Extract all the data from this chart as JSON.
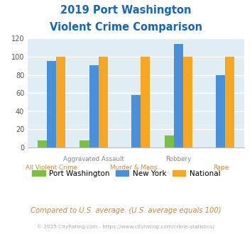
{
  "title_line1": "2019 Port Washington",
  "title_line2": "Violent Crime Comparison",
  "series": {
    "Port Washington": [
      8,
      8,
      0,
      13,
      0
    ],
    "New York": [
      95,
      91,
      58,
      114,
      80
    ],
    "National": [
      100,
      100,
      100,
      100,
      100
    ]
  },
  "colors": {
    "Port Washington": "#7BC043",
    "New York": "#4A90D9",
    "National": "#F5A623"
  },
  "ylim": [
    0,
    120
  ],
  "yticks": [
    0,
    20,
    40,
    60,
    80,
    100,
    120
  ],
  "plot_bg": "#E0EEF4",
  "title_color": "#1565C0",
  "xlabel_top": [
    "",
    "Aggravated Assault",
    "",
    "Robbery",
    ""
  ],
  "xlabel_bot": [
    "All Violent Crime",
    "",
    "Murder & Mans...",
    "",
    "Rape"
  ],
  "xlabel_color_top": "#888888",
  "xlabel_color_bot": "#CC8844",
  "footer_text": "Compared to U.S. average. (U.S. average equals 100)",
  "copyright_text": "© 2025 CityRating.com - https://www.cityrating.com/crime-statistics/",
  "footer_color": "#CC8844",
  "copyright_color": "#AAAAAA",
  "bar_width": 0.22,
  "n_cats": 5
}
